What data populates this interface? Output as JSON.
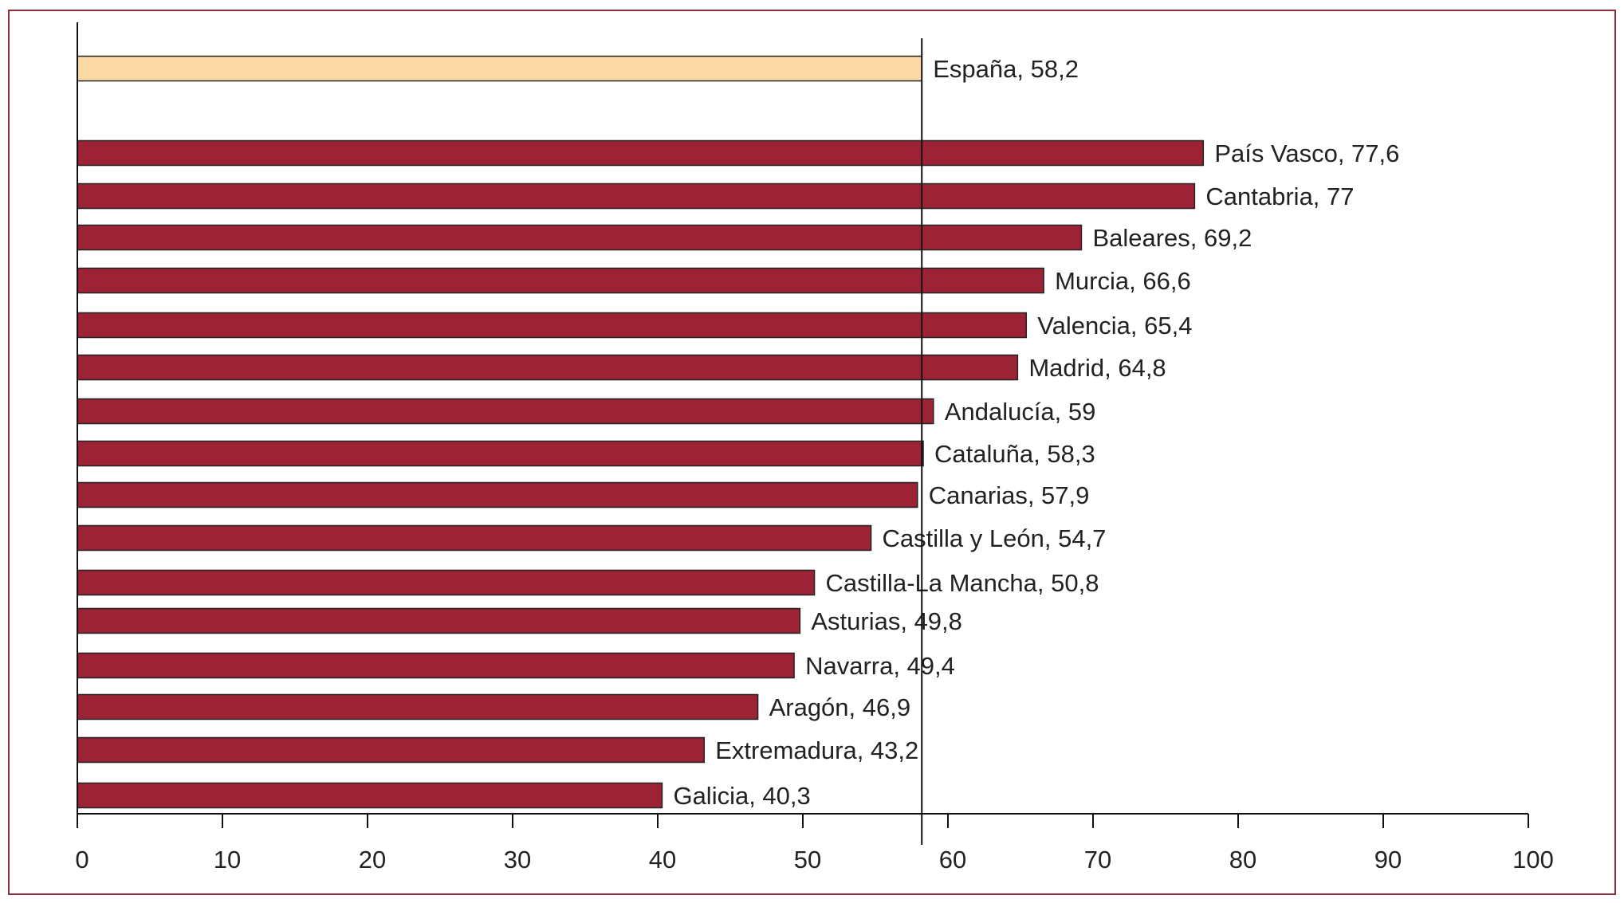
{
  "chart_data": {
    "type": "bar",
    "orientation": "horizontal",
    "xlim": [
      0,
      100
    ],
    "x_ticks": [
      0,
      10,
      20,
      30,
      40,
      50,
      60,
      70,
      80,
      90,
      100
    ],
    "reference_line": 58.2,
    "colors": {
      "highlight": "#fbd9a4",
      "bars": "#9b2335",
      "outline": "#222222"
    },
    "categories": [
      "España",
      "País Vasco",
      "Cantabria",
      "Baleares",
      "Murcia",
      "Valencia",
      "Madrid",
      "Andalucía",
      "Cataluña",
      "Canarias",
      "Castilla y León",
      "Castilla-La Mancha",
      "Asturias",
      "Navarra",
      "Aragón",
      "Extremadura",
      "Galicia"
    ],
    "values": [
      58.2,
      77.6,
      77,
      69.2,
      66.6,
      65.4,
      64.8,
      59,
      58.3,
      57.9,
      54.7,
      50.8,
      49.8,
      49.4,
      46.9,
      43.2,
      40.3
    ],
    "labels": [
      "España, 58,2",
      "País Vasco, 77,6",
      "Cantabria, 77",
      "Baleares, 69,2",
      "Murcia, 66,6",
      "Valencia, 65,4",
      "Madrid, 64,8",
      "Andalucía, 59",
      "Cataluña, 58,3",
      "Canarias, 57,9",
      "Castilla y León, 54,7",
      "Castilla-La Mancha, 50,8",
      "Asturias, 49,8",
      "Navarra, 49,4",
      "Aragón, 46,9",
      "Extremadura, 43,2",
      "Galicia, 40,3"
    ],
    "highlight_index": 0
  }
}
